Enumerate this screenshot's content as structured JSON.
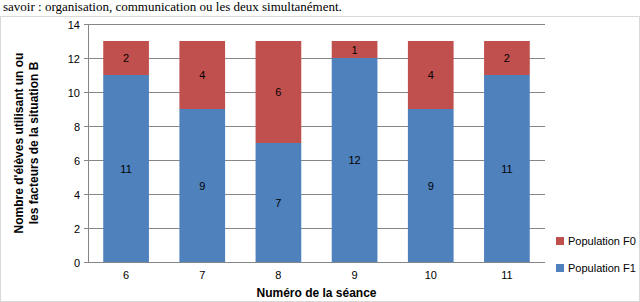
{
  "chart_data": {
    "type": "bar",
    "stacked": true,
    "data_labels": true,
    "grid": true,
    "legend": "right",
    "annotations": [
      "savoir : organisation, communication ou les deux simultanément."
    ],
    "x_label": "Numéro de la séance",
    "y_label": "Nombre d'élèves utilisant un ou les facteurs de la situation B",
    "categories": [
      "6",
      "7",
      "8",
      "9",
      "10",
      "11"
    ],
    "series": [
      {
        "name": "Population F1",
        "color": "#4f81bd",
        "values": [
          11,
          9,
          7,
          12,
          9,
          11
        ]
      },
      {
        "name": "Population F0",
        "color": "#c0504d",
        "values": [
          2,
          4,
          6,
          1,
          4,
          2
        ]
      }
    ],
    "ylim": [
      0,
      14
    ],
    "yticks": [
      0,
      2,
      4,
      6,
      8,
      10,
      12,
      14
    ]
  }
}
